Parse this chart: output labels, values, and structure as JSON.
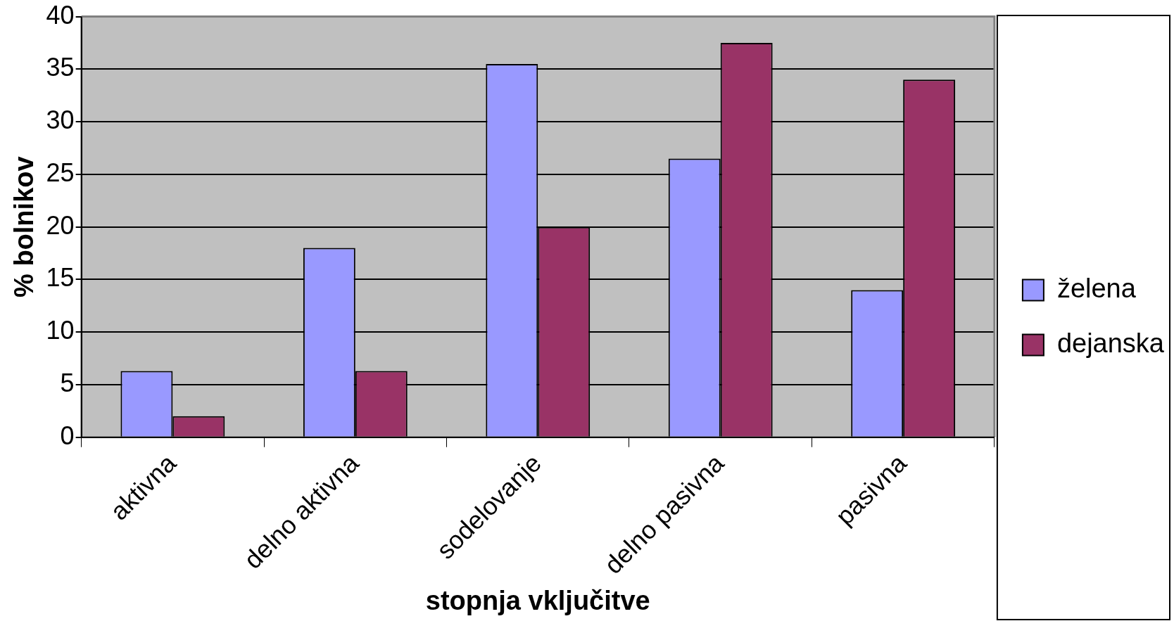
{
  "chart_data": {
    "type": "bar",
    "xlabel": "stopnja vključitve",
    "ylabel": "% bolnikov",
    "categories": [
      "aktivna",
      "delno aktivna",
      "sodelovanje",
      "delno pasivna",
      "pasivna"
    ],
    "series": [
      {
        "name": "želena",
        "color": "#9999ff",
        "values": [
          6.3,
          18,
          35.5,
          26.5,
          14
        ]
      },
      {
        "name": "dejanska",
        "color": "#993366",
        "values": [
          2,
          6.3,
          20,
          37.5,
          34
        ]
      }
    ],
    "ylim": [
      0,
      40
    ],
    "yticks": [
      0,
      5,
      10,
      15,
      20,
      25,
      30,
      35,
      40
    ],
    "grid": "y",
    "legend": "right"
  }
}
